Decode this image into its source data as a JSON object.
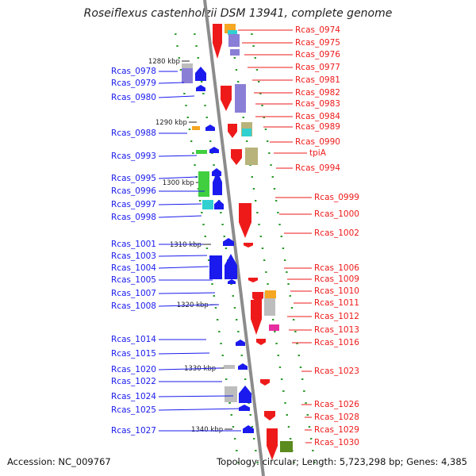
{
  "title": "Roseiflexus castenholzii DSM 13941, complete genome",
  "footer": {
    "accession": "Accession: NC_009767",
    "stats": "Topology: circular; Length: 5,723,298 bp; Genes: 4,385"
  },
  "ticks": [
    "1280 kbp",
    "1290 kbp",
    "1300 kbp",
    "1310 kbp",
    "1320 kbp",
    "1330 kbp",
    "1340 kbp"
  ],
  "left_genes": [
    "Rcas_0978",
    "Rcas_0979",
    "Rcas_0980",
    "Rcas_0988",
    "Rcas_0993",
    "Rcas_0995",
    "Rcas_0996",
    "Rcas_0997",
    "Rcas_0998",
    "Rcas_1001",
    "Rcas_1003",
    "Rcas_1004",
    "Rcas_1005",
    "Rcas_1007",
    "Rcas_1008",
    "Rcas_1014",
    "Rcas_1015",
    "Rcas_1020",
    "Rcas_1022",
    "Rcas_1024",
    "Rcas_1025",
    "Rcas_1027"
  ],
  "right_genes": [
    "Rcas_0974",
    "Rcas_0975",
    "Rcas_0976",
    "Rcas_0977",
    "Rcas_0981",
    "Rcas_0982",
    "Rcas_0983",
    "Rcas_0984",
    "Rcas_0989",
    "Rcas_0990",
    "tpiA",
    "Rcas_0994",
    "Rcas_0999",
    "Rcas_1000",
    "Rcas_1002",
    "Rcas_1006",
    "Rcas_1009",
    "Rcas_1010",
    "Rcas_1011",
    "Rcas_1012",
    "Rcas_1013",
    "Rcas_1016",
    "Rcas_1023",
    "Rcas_1026",
    "Rcas_1028",
    "Rcas_1029",
    "Rcas_1030"
  ],
  "colors": {
    "backbone": "#8c8c8c",
    "forward_strand": "#1a1aee",
    "reverse_strand": "#ee1a1a",
    "dots": "#2b9a2b",
    "cog_lavender": "#8a7fd6",
    "cog_green": "#3fcf3f",
    "cog_cyan": "#31d0d0",
    "cog_orange": "#f5a623",
    "cog_olive": "#b8b37a",
    "cog_magenta": "#e62ea0",
    "cog_gray": "#bdbdbd",
    "cog_darkgreen": "#5b8a1e"
  }
}
